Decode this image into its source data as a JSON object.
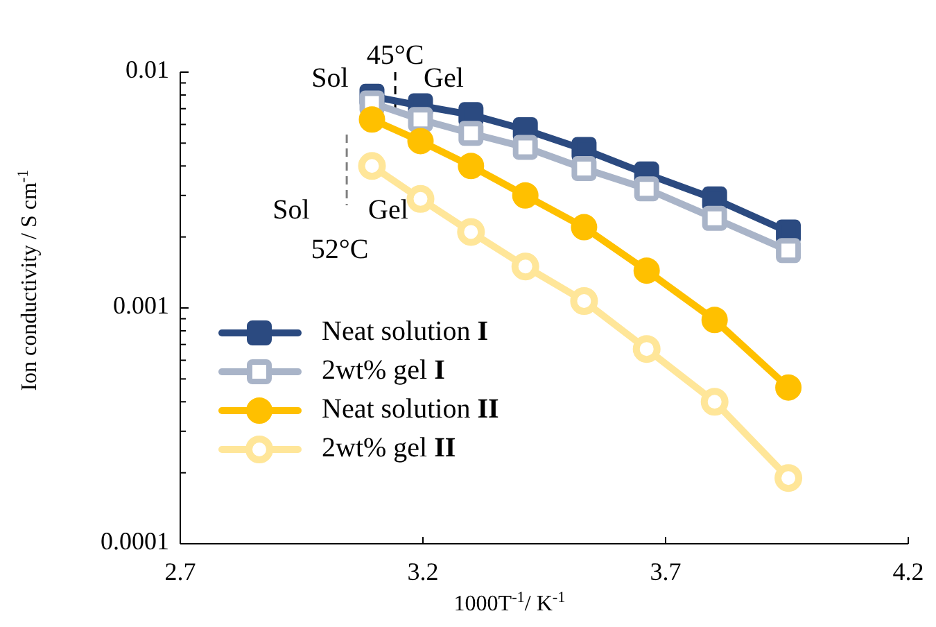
{
  "chart_data": {
    "type": "line",
    "xlabel": "1000T$^{-1}$/ K$^{-1}$",
    "ylabel": "Ion conductivity / S cm$^{-1}$",
    "log": "y",
    "x": [
      3.095,
      3.195,
      3.299,
      3.411,
      3.532,
      3.661,
      3.801,
      3.953
    ],
    "xlim": [
      2.7,
      4.2
    ],
    "xticks": [
      2.7,
      3.2,
      3.7,
      4.2
    ],
    "ylim": [
      0.0001,
      0.01
    ],
    "yticks": [
      {
        "value": 0.0001,
        "label": "0.0001"
      },
      {
        "value": 0.0002,
        "label": null
      },
      {
        "value": 0.0003,
        "label": null
      },
      {
        "value": 0.0004,
        "label": null
      },
      {
        "value": 0.0005,
        "label": null
      },
      {
        "value": 0.0006,
        "label": null
      },
      {
        "value": 0.0007,
        "label": null
      },
      {
        "value": 0.0008,
        "label": null
      },
      {
        "value": 0.0009,
        "label": null
      },
      {
        "value": 0.001,
        "label": "0.001"
      },
      {
        "value": 0.002,
        "label": null
      },
      {
        "value": 0.003,
        "label": null
      },
      {
        "value": 0.004,
        "label": null
      },
      {
        "value": 0.005,
        "label": null
      },
      {
        "value": 0.006,
        "label": null
      },
      {
        "value": 0.007,
        "label": null
      },
      {
        "value": 0.008,
        "label": null
      },
      {
        "value": 0.009,
        "label": null
      },
      {
        "value": 0.01,
        "label": "0.01"
      }
    ],
    "grid": false,
    "legend": "bottom left",
    "line_style": "solid",
    "series": [
      {
        "name": "Neat solution I",
        "color": "#2b4a80",
        "marker": "square",
        "values": [
          0.0079,
          0.0072,
          0.0066,
          0.0057,
          0.0047,
          0.0037,
          0.0029,
          0.0021
        ]
      },
      {
        "name": "2wt% gel I",
        "color": "#a9b4c8",
        "marker": "square-open",
        "values": [
          0.0074,
          0.0063,
          0.0055,
          0.0048,
          0.0039,
          0.0032,
          0.0024,
          0.00175
        ]
      },
      {
        "name": "Neat solution II",
        "color": "#ffc000",
        "marker": "circle",
        "values": [
          0.0063,
          0.0051,
          0.004,
          0.003,
          0.0022,
          0.00144,
          0.00089,
          0.00046
        ]
      },
      {
        "name": "2wt% gel II",
        "color": "#ffe699",
        "marker": "circle-open",
        "values": [
          0.004,
          0.0029,
          0.0021,
          0.0015,
          0.00107,
          0.00067,
          0.0004,
          0.00019
        ]
      }
    ],
    "ref_lines": [
      {
        "axis": "x",
        "value": 3.143,
        "label": "45°C",
        "color": "#000000",
        "line_style": "dashed"
      },
      {
        "axis": "x",
        "value": 3.043,
        "label": "52°C",
        "color": "#808080",
        "line_style": "dashed"
      }
    ],
    "annotations": [
      "Sol",
      "Gel",
      "Sol",
      "Gel"
    ]
  }
}
